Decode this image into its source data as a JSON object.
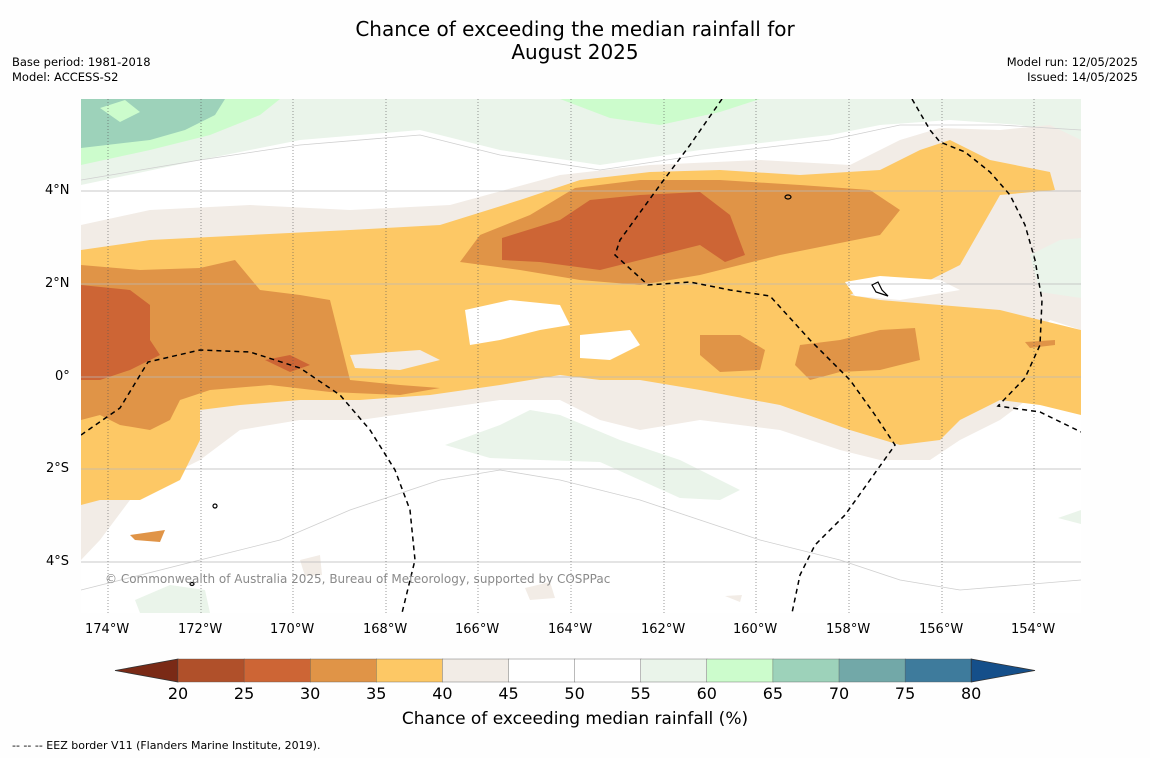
{
  "title_line1": "Chance of exceeding the median rainfall for",
  "title_line2": "August 2025",
  "meta_left": [
    "Base period: 1981-2018",
    "Model: ACCESS-S2"
  ],
  "meta_right": [
    "Model run: 12/05/2025",
    "Issued: 14/05/2025"
  ],
  "credit": "© Commonwealth of Australia 2025, Bureau of Meteorology, supported by COSPPac",
  "lat_labels": [
    "4°N",
    "2°N",
    "0°",
    "2°S",
    "4°S"
  ],
  "lon_labels": [
    "174°W",
    "172°W",
    "170°W",
    "168°W",
    "166°W",
    "164°W",
    "162°W",
    "160°W",
    "158°W",
    "156°W",
    "154°W"
  ],
  "colorbar": {
    "ticks": [
      "20",
      "25",
      "30",
      "35",
      "40",
      "45",
      "50",
      "55",
      "60",
      "65",
      "70",
      "75",
      "80"
    ],
    "label": "Chance of exceeding median rainfall (%)",
    "colors": [
      "#7a2a16",
      "#b0502a",
      "#cd6535",
      "#e09447",
      "#fdc865",
      "#f2ece6",
      "#ffffff",
      "#ffffff",
      "#eaf4ea",
      "#ccfccc",
      "#9dd2ba",
      "#72a8a8",
      "#3e7b9c",
      "#154f8a"
    ]
  },
  "footer": "--  --  -- EEZ border V11 (Flanders Marine Institute, 2019)."
}
